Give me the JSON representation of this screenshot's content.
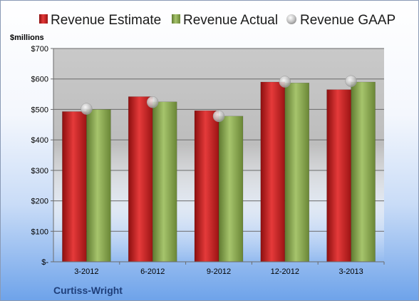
{
  "chart_data": {
    "type": "bar",
    "title": "",
    "ylabel": "$millions",
    "xlabel": "",
    "categories": [
      "3-2012",
      "6-2012",
      "9-2012",
      "12-2012",
      "3-2013"
    ],
    "series": [
      {
        "name": "Revenue Estimate",
        "type": "bar",
        "color": "#d42a2a",
        "values": [
          493,
          542,
          496,
          590,
          565
        ]
      },
      {
        "name": "Revenue Actual",
        "type": "bar",
        "color": "#8fae55",
        "values": [
          500,
          525,
          478,
          587,
          590
        ]
      },
      {
        "name": "Revenue GAAP",
        "type": "marker",
        "color": "#c8c8c8",
        "values": [
          502,
          524,
          478,
          591,
          593
        ]
      }
    ],
    "ylim": [
      0,
      700
    ],
    "yticks": [
      0,
      100,
      200,
      300,
      400,
      500,
      600,
      700
    ],
    "ytick_labels": [
      "$-",
      "$100",
      "$200",
      "$300",
      "$400",
      "$500",
      "$600",
      "$700"
    ],
    "legend_position": "top",
    "grid": true
  },
  "company": "Curtiss-Wright"
}
